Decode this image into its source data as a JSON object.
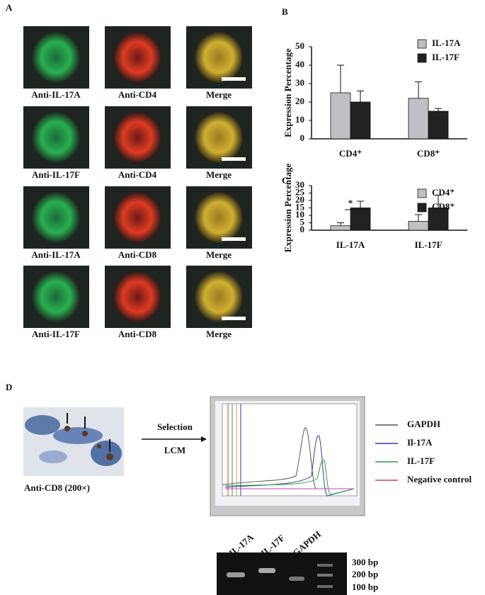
{
  "panel_labels": [
    "A",
    "B",
    "C",
    "D"
  ],
  "panel_a": {
    "rows": [
      [
        "Anti-IL-17A",
        "Anti-CD4",
        "Merge"
      ],
      [
        "Anti-IL-17F",
        "Anti-CD4",
        "Merge"
      ],
      [
        "Anti-IL-17A",
        "Anti-CD8",
        "Merge"
      ],
      [
        "Anti-IL-17F",
        "Anti-CD8",
        "Merge"
      ]
    ]
  },
  "chart_data": [
    {
      "type": "bar",
      "y_label": "Expression Percentage",
      "categories": [
        "CD4⁺",
        "CD8⁺"
      ],
      "series": [
        {
          "name": "IL-17A",
          "color": "#c0c0c4",
          "values": [
            25,
            22
          ],
          "errors": [
            15,
            9
          ]
        },
        {
          "name": "IL-17F",
          "color": "#222222",
          "values": [
            20,
            15
          ],
          "errors": [
            6,
            1.5
          ]
        }
      ],
      "ylim": [
        0,
        50
      ],
      "yticks": [
        0,
        10,
        20,
        30,
        40,
        50
      ]
    },
    {
      "type": "bar",
      "y_label": "Expression Percentage",
      "categories": [
        "IL-17A",
        "IL-17F"
      ],
      "series": [
        {
          "name": "CD4⁺",
          "color": "#c0c0c4",
          "values": [
            3,
            6
          ],
          "errors": [
            2,
            4.5
          ]
        },
        {
          "name": "CD8⁺",
          "color": "#222222",
          "values": [
            15,
            15
          ],
          "errors": [
            4.5,
            8.5
          ]
        }
      ],
      "ylim": [
        0,
        30
      ],
      "yticks": [
        0,
        5,
        10,
        15,
        20,
        25,
        30
      ],
      "annotation": "*"
    }
  ],
  "panel_d": {
    "image_caption": "Anti-CD8 (200×)",
    "arrow_labels": [
      "Selection",
      "LCM"
    ],
    "legend": [
      {
        "name": "GAPDH",
        "color": "#555555"
      },
      {
        "name": "Il-17A",
        "color": "#3a3aa0"
      },
      {
        "name": "IL-17F",
        "color": "#2aa040"
      },
      {
        "name": "Negative control",
        "color": "#e04040"
      }
    ],
    "gel_lanes": [
      "IL-17A",
      "IL-17F",
      "GAPDH"
    ],
    "gel_markers": [
      "300 bp",
      "200 bp",
      "100 bp"
    ]
  }
}
